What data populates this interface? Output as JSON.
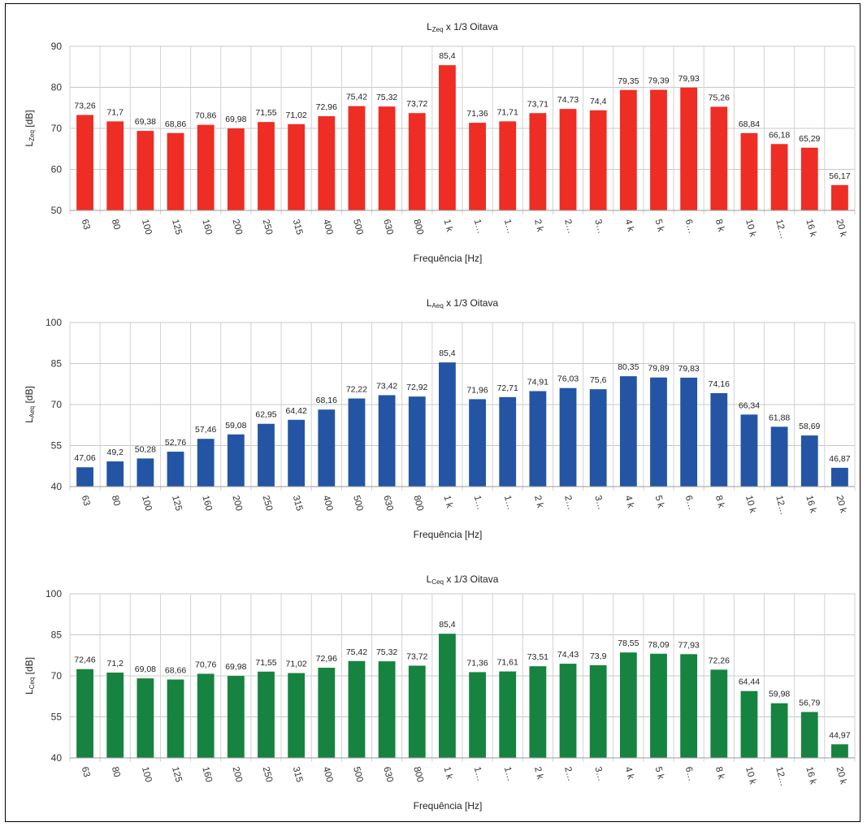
{
  "chart_data": [
    {
      "type": "bar",
      "title": "x 1/3 Oitava",
      "title_main": "L",
      "title_sub": "Zeq",
      "ylabel_main": "L",
      "ylabel_sub": "Zeq",
      "ylabel_unit": " [dB]",
      "xlabel": "Frequência [Hz]",
      "ylim": [
        50,
        90
      ],
      "yticks": [
        "50",
        "60",
        "70",
        "80",
        "90"
      ],
      "ytick_values": [
        50,
        60,
        70,
        80,
        90
      ],
      "color": "#ee2d24",
      "categories": [
        "63",
        "80",
        "100",
        "125",
        "160",
        "200",
        "250",
        "315",
        "400",
        "500",
        "630",
        "800",
        "1 k",
        "1…",
        "1…",
        "2 k",
        "2…",
        "3…",
        "4 k",
        "5 k",
        "6…",
        "8 k",
        "10 k",
        "12…",
        "16 k",
        "20 k"
      ],
      "values": [
        73.26,
        71.7,
        69.38,
        68.86,
        70.86,
        69.98,
        71.55,
        71.02,
        72.96,
        75.42,
        75.32,
        73.72,
        85.4,
        71.36,
        71.71,
        73.71,
        74.73,
        74.4,
        79.35,
        79.39,
        79.93,
        75.26,
        68.84,
        66.18,
        65.29,
        56.17
      ],
      "labels": [
        "73,26",
        "71,7",
        "69,38",
        "68,86",
        "70,86",
        "69,98",
        "71,55",
        "71,02",
        "72,96",
        "75,42",
        "75,32",
        "73,72",
        "85,4",
        "71,36",
        "71,71",
        "73,71",
        "74,73",
        "74,4",
        "79,35",
        "79,39",
        "79,93",
        "75,26",
        "68,84",
        "66,18",
        "65,29",
        "56,17"
      ],
      "grid": true,
      "legend": "none"
    },
    {
      "type": "bar",
      "title": "x 1/3 Oitava",
      "title_main": "L",
      "title_sub": "Aeq",
      "ylabel_main": "L",
      "ylabel_sub": "Aeq",
      "ylabel_unit": " [dB]",
      "xlabel": "Frequência [Hz]",
      "ylim": [
        40,
        100
      ],
      "yticks": [
        "40",
        "55",
        "70",
        "85",
        "100"
      ],
      "ytick_values": [
        40,
        55,
        70,
        85,
        100
      ],
      "color": "#2355a4",
      "categories": [
        "63",
        "80",
        "100",
        "125",
        "160",
        "200",
        "250",
        "315",
        "400",
        "500",
        "630",
        "800",
        "1 k",
        "1…",
        "1…",
        "2 k",
        "2…",
        "3…",
        "4 k",
        "5 k",
        "6…",
        "8 k",
        "10 k",
        "12…",
        "16 k",
        "20 k"
      ],
      "values": [
        47.06,
        49.2,
        50.28,
        52.76,
        57.46,
        59.08,
        62.95,
        64.42,
        68.16,
        72.22,
        73.42,
        72.92,
        85.4,
        71.96,
        72.71,
        74.91,
        76.03,
        75.6,
        80.35,
        79.89,
        79.83,
        74.16,
        66.34,
        61.88,
        58.69,
        46.87
      ],
      "labels": [
        "47,06",
        "49,2",
        "50,28",
        "52,76",
        "57,46",
        "59,08",
        "62,95",
        "64,42",
        "68,16",
        "72,22",
        "73,42",
        "72,92",
        "85,4",
        "71,96",
        "72,71",
        "74,91",
        "76,03",
        "75,6",
        "80,35",
        "79,89",
        "79,83",
        "74,16",
        "66,34",
        "61,88",
        "58,69",
        "46,87"
      ],
      "grid": true,
      "legend": "none"
    },
    {
      "type": "bar",
      "title": "x 1/3 Oitava",
      "title_main": "L",
      "title_sub": "Ceq",
      "ylabel_main": "L",
      "ylabel_sub": "Ceq",
      "ylabel_unit": " [dB]",
      "xlabel": "Frequência [Hz]",
      "ylim": [
        40,
        100
      ],
      "yticks": [
        "40",
        "55",
        "70",
        "85",
        "100"
      ],
      "ytick_values": [
        40,
        55,
        70,
        85,
        100
      ],
      "color": "#168341",
      "categories": [
        "63",
        "80",
        "100",
        "125",
        "160",
        "200",
        "250",
        "315",
        "400",
        "500",
        "630",
        "800",
        "1 k",
        "1…",
        "1…",
        "2 k",
        "2…",
        "3…",
        "4 k",
        "5 k",
        "6…",
        "8 k",
        "10 k",
        "12…",
        "16 k",
        "20 k"
      ],
      "values": [
        72.46,
        71.2,
        69.08,
        68.66,
        70.76,
        69.98,
        71.55,
        71.02,
        72.96,
        75.42,
        75.32,
        73.72,
        85.4,
        71.36,
        71.61,
        73.51,
        74.43,
        73.9,
        78.55,
        78.09,
        77.93,
        72.26,
        64.44,
        59.98,
        56.79,
        44.97
      ],
      "labels": [
        "72,46",
        "71,2",
        "69,08",
        "68,66",
        "70,76",
        "69,98",
        "71,55",
        "71,02",
        "72,96",
        "75,42",
        "75,32",
        "73,72",
        "85,4",
        "71,36",
        "71,61",
        "73,51",
        "74,43",
        "73,9",
        "78,55",
        "78,09",
        "77,93",
        "72,26",
        "64,44",
        "59,98",
        "56,79",
        "44,97"
      ],
      "grid": true,
      "legend": "none"
    }
  ]
}
